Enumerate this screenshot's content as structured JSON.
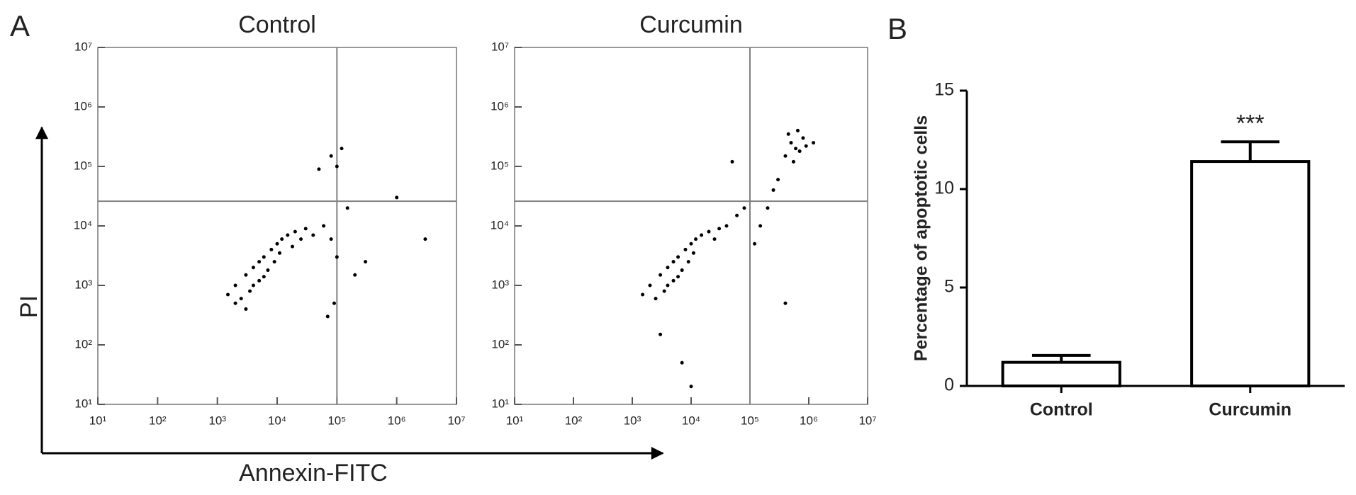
{
  "figure": {
    "panel_labels": [
      "A",
      "B"
    ],
    "x_label": "Annexin-FITC",
    "y_label": "PI"
  },
  "chart_data": [
    {
      "type": "scatter",
      "title": "Control",
      "log_x": true,
      "log_y": true,
      "color": "#000000",
      "quadrant_color": "#808080",
      "xlim": [
        10,
        10000000
      ],
      "ylim": [
        10,
        10000000
      ],
      "xticks": [
        {
          "value": 10,
          "label": "10¹"
        },
        {
          "value": 100,
          "label": "10²"
        },
        {
          "value": 1000,
          "label": "10³"
        },
        {
          "value": 10000,
          "label": "10⁴"
        },
        {
          "value": 100000,
          "label": "10⁵"
        },
        {
          "value": 1000000,
          "label": "10⁶"
        },
        {
          "value": 10000000,
          "label": "10⁷"
        }
      ],
      "yticks": [
        {
          "value": 10,
          "label": "10¹"
        },
        {
          "value": 100,
          "label": "10²"
        },
        {
          "value": 1000,
          "label": "10³"
        },
        {
          "value": 10000,
          "label": "10⁴"
        },
        {
          "value": 100000,
          "label": "10⁵"
        },
        {
          "value": 1000000,
          "label": "10⁶"
        },
        {
          "value": 10000000,
          "label": "10⁷"
        }
      ],
      "quadrant_x": 100000,
      "quadrant_y": 26000,
      "x": [
        2000,
        3000,
        4000,
        5000,
        6000,
        8000,
        10000,
        12000,
        15000,
        20000,
        3500,
        5000,
        7000,
        9000,
        2500,
        4000,
        6000,
        11000,
        25000,
        30000,
        1500,
        2000,
        3000,
        18000,
        40000,
        60000,
        80000,
        100000,
        150000,
        90000,
        70000,
        200000,
        300000,
        1000000,
        3000000,
        80000,
        120000,
        50000,
        100000
      ],
      "values": [
        1000,
        1500,
        2000,
        2500,
        3000,
        4000,
        5000,
        6000,
        7000,
        8000,
        800,
        1200,
        1800,
        2500,
        600,
        1000,
        1400,
        3500,
        6000,
        9000,
        700,
        500,
        400,
        4500,
        7000,
        10000,
        6000,
        3000,
        20000,
        500,
        300,
        1500,
        2500,
        30000,
        6000,
        150000,
        200000,
        90000,
        100000
      ]
    },
    {
      "type": "scatter",
      "title": "Curcumin",
      "log_x": true,
      "log_y": true,
      "color": "#000000",
      "quadrant_color": "#808080",
      "xlim": [
        10,
        10000000
      ],
      "ylim": [
        10,
        10000000
      ],
      "xticks": [
        {
          "value": 10,
          "label": "10¹"
        },
        {
          "value": 100,
          "label": "10²"
        },
        {
          "value": 1000,
          "label": "10³"
        },
        {
          "value": 10000,
          "label": "10⁴"
        },
        {
          "value": 100000,
          "label": "10⁵"
        },
        {
          "value": 1000000,
          "label": "10⁶"
        },
        {
          "value": 10000000,
          "label": "10⁷"
        }
      ],
      "yticks": [
        {
          "value": 10,
          "label": "10¹"
        },
        {
          "value": 100,
          "label": "10²"
        },
        {
          "value": 1000,
          "label": "10³"
        },
        {
          "value": 10000,
          "label": "10⁴"
        },
        {
          "value": 100000,
          "label": "10⁵"
        },
        {
          "value": 1000000,
          "label": "10⁶"
        },
        {
          "value": 10000000,
          "label": "10⁷"
        }
      ],
      "quadrant_x": 100000,
      "quadrant_y": 26000,
      "x": [
        2000,
        3000,
        4000,
        5000,
        6000,
        8000,
        10000,
        12000,
        15000,
        20000,
        3500,
        5000,
        7000,
        9000,
        2500,
        4000,
        6000,
        11000,
        25000,
        30000,
        1500,
        40000,
        60000,
        80000,
        150000,
        200000,
        250000,
        300000,
        120000,
        400000,
        500000,
        600000,
        700000,
        800000,
        550000,
        900000,
        650000,
        450000,
        1200000,
        50000,
        10000,
        7000,
        3000,
        400000
      ],
      "values": [
        1000,
        1500,
        2000,
        2500,
        3000,
        4000,
        5000,
        6000,
        7000,
        8000,
        800,
        1200,
        1800,
        2500,
        600,
        1000,
        1400,
        3500,
        6000,
        9000,
        700,
        10000,
        15000,
        20000,
        10000,
        20000,
        40000,
        60000,
        5000,
        150000,
        250000,
        200000,
        180000,
        300000,
        120000,
        220000,
        400000,
        350000,
        250000,
        120000,
        20,
        50,
        150,
        500
      ]
    },
    {
      "type": "bar",
      "ylabel": "Percentage of apoptotic cells",
      "color": "#ffffff",
      "edge_color": "#000000",
      "categories": [
        "Control",
        "Curcumin"
      ],
      "values": [
        1.2,
        11.4
      ],
      "errors": [
        0.35,
        1.0
      ],
      "significance_labels": [
        null,
        "***"
      ],
      "ylim": [
        0,
        15
      ],
      "yticks": [
        0,
        5,
        10,
        15
      ]
    }
  ]
}
